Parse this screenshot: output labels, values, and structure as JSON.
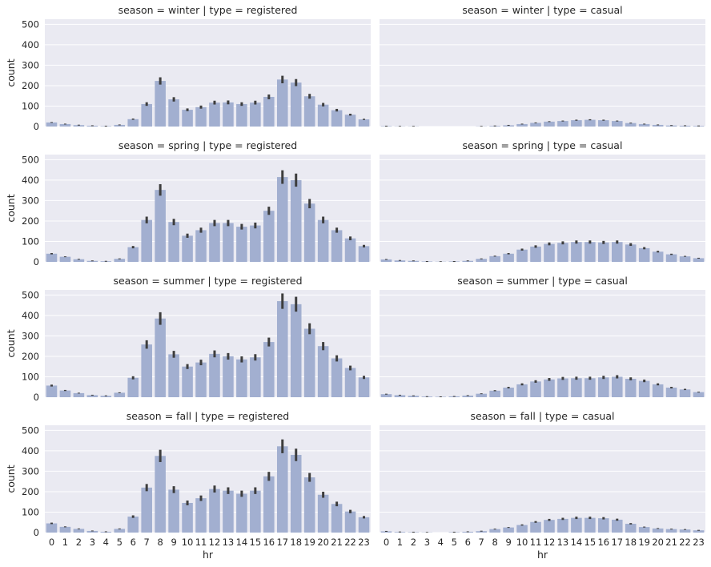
{
  "chart_data": {
    "type": "bar",
    "xlabel": "hr",
    "ylabel": "count",
    "ylim": [
      0,
      525
    ],
    "yticks": [
      0,
      100,
      200,
      300,
      400,
      500
    ],
    "categories": [
      "0",
      "1",
      "2",
      "3",
      "4",
      "5",
      "6",
      "7",
      "8",
      "9",
      "10",
      "11",
      "12",
      "13",
      "14",
      "15",
      "16",
      "17",
      "18",
      "19",
      "20",
      "21",
      "22",
      "23"
    ],
    "grid": true,
    "colors": {
      "bar": "#a2afd0",
      "errorbar": "#3d3d3d",
      "background": "#eaeaf2",
      "grid": "#ffffff"
    },
    "panels": [
      {
        "title": "season = winter | type = registered",
        "values": [
          20,
          12,
          7,
          4,
          2,
          8,
          36,
          110,
          223,
          133,
          82,
          95,
          117,
          118,
          110,
          117,
          145,
          230,
          215,
          148,
          107,
          80,
          58,
          35
        ]
      },
      {
        "title": "season = winter | type = casual",
        "values": [
          2,
          1,
          1,
          0,
          0,
          0,
          0,
          1,
          3,
          6,
          12,
          18,
          24,
          27,
          31,
          33,
          31,
          27,
          17,
          12,
          8,
          5,
          4,
          3
        ]
      },
      {
        "title": "season = spring | type = registered",
        "values": [
          40,
          25,
          13,
          5,
          3,
          15,
          72,
          205,
          352,
          195,
          128,
          155,
          190,
          190,
          172,
          178,
          250,
          415,
          400,
          285,
          205,
          155,
          115,
          77
        ]
      },
      {
        "title": "season = spring | type = casual",
        "values": [
          12,
          7,
          5,
          2,
          1,
          2,
          5,
          15,
          28,
          40,
          60,
          75,
          88,
          93,
          97,
          97,
          95,
          97,
          85,
          67,
          50,
          37,
          27,
          18
        ]
      },
      {
        "title": "season = summer | type = registered",
        "values": [
          57,
          33,
          20,
          10,
          7,
          22,
          95,
          258,
          385,
          210,
          150,
          170,
          212,
          200,
          185,
          195,
          270,
          470,
          455,
          335,
          250,
          190,
          143,
          97
        ]
      },
      {
        "title": "season = summer | type = casual",
        "values": [
          15,
          10,
          7,
          3,
          2,
          4,
          8,
          17,
          32,
          47,
          63,
          77,
          87,
          92,
          93,
          93,
          97,
          100,
          90,
          80,
          63,
          47,
          38,
          25
        ]
      },
      {
        "title": "season = fall | type = registered",
        "values": [
          45,
          28,
          18,
          8,
          4,
          18,
          78,
          220,
          375,
          210,
          145,
          168,
          213,
          205,
          190,
          205,
          275,
          422,
          380,
          270,
          185,
          140,
          103,
          75
        ]
      },
      {
        "title": "season = fall | type = casual",
        "values": [
          6,
          3,
          2,
          1,
          0,
          2,
          4,
          7,
          17,
          25,
          37,
          52,
          62,
          67,
          72,
          72,
          70,
          63,
          43,
          27,
          20,
          17,
          15,
          11
        ]
      }
    ]
  }
}
